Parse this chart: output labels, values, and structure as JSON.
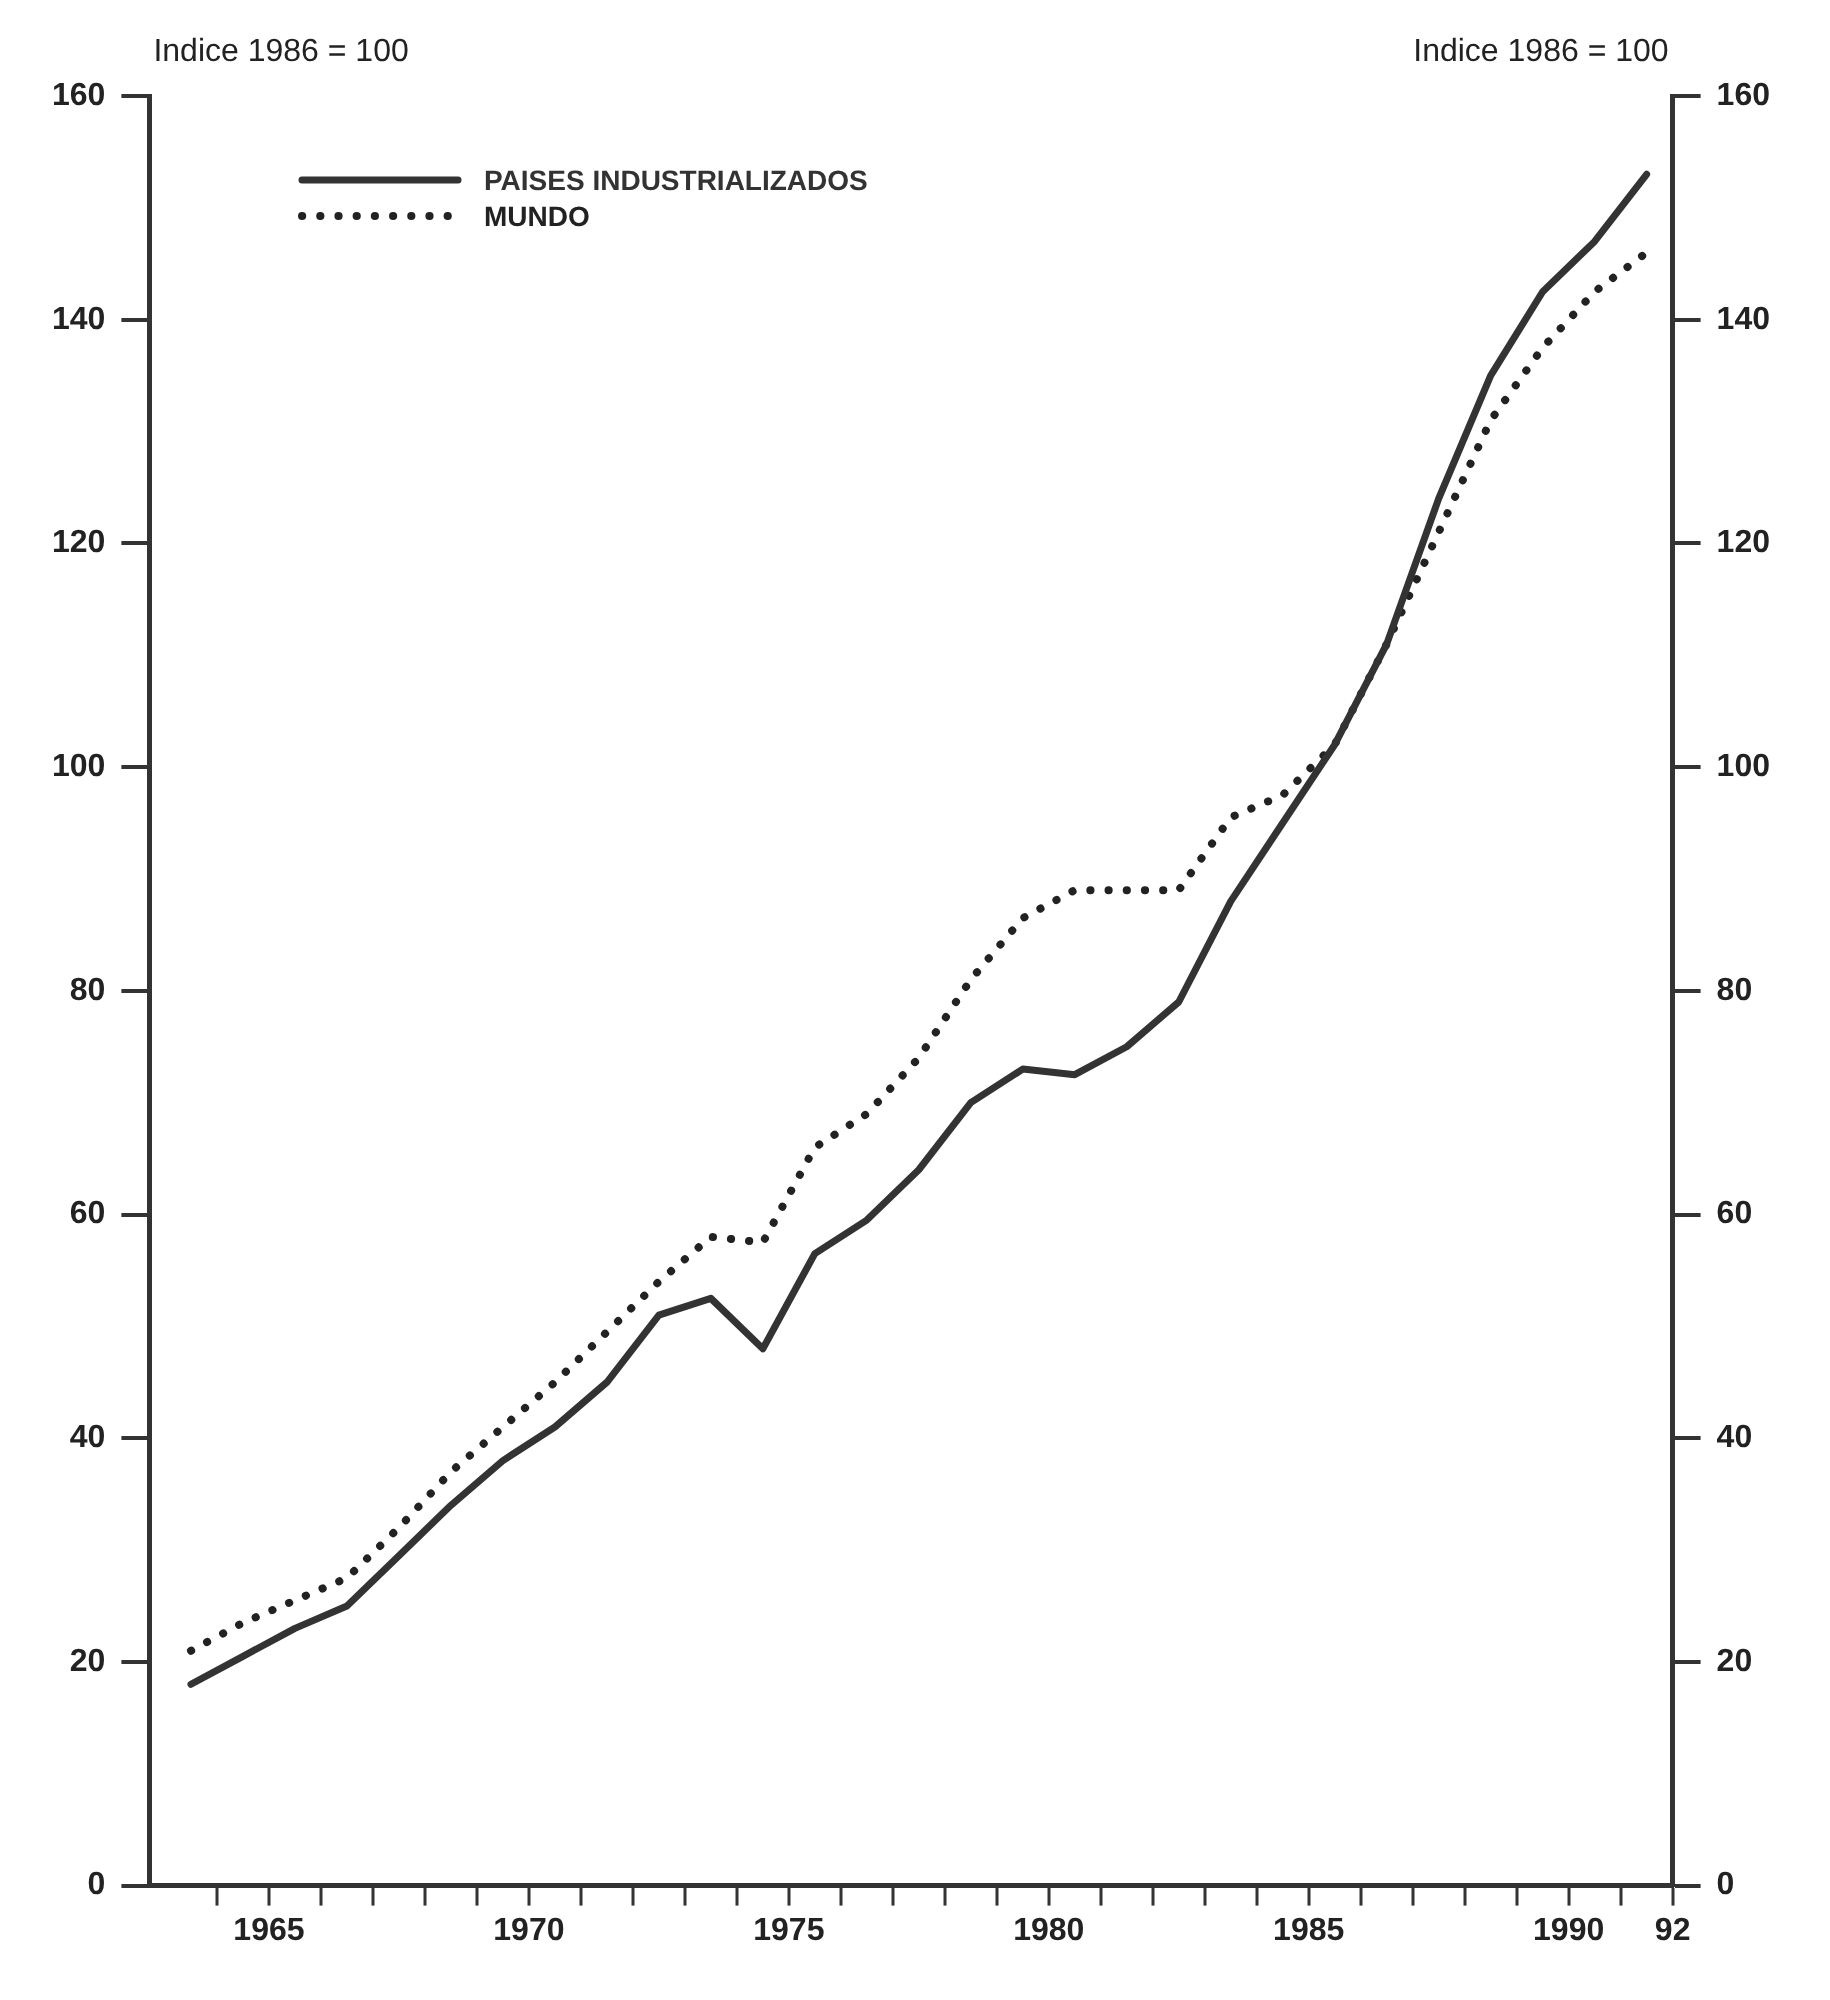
{
  "chart_data": {
    "type": "line",
    "ylabel": "Indice 1986 = 100",
    "y2label": "Indice 1986 = 100",
    "x": [
      1963.5,
      1964.5,
      1965.5,
      1966.5,
      1967.5,
      1968.5,
      1969.5,
      1970.5,
      1971.5,
      1972.5,
      1973.5,
      1974.5,
      1975.5,
      1976.5,
      1977.5,
      1978.5,
      1979.5,
      1980.5,
      1981.5,
      1982.5,
      1983.5,
      1984.5,
      1985.5,
      1986.5,
      1987.5,
      1988.5,
      1989.5,
      1990.5,
      1991.5
    ],
    "series": [
      {
        "name": "PAISES INDUSTRIALIZADOS",
        "color": "#333333",
        "line_style": "solid",
        "values": [
          18,
          20.5,
          23,
          25,
          29.5,
          34,
          38,
          41,
          45,
          51,
          52.5,
          48,
          56.5,
          59.5,
          64,
          70,
          73,
          72.5,
          75,
          79,
          88,
          95,
          102,
          111,
          124,
          135,
          142.5,
          147,
          153
        ]
      },
      {
        "name": "MUNDO",
        "color": "#222222",
        "line_style": "dotted",
        "values": [
          21,
          23.5,
          25.5,
          27.5,
          32,
          37,
          41,
          45,
          49.5,
          54,
          58,
          57.5,
          66,
          69,
          74,
          81,
          86.5,
          89,
          89,
          89,
          95.5,
          97.5,
          102,
          111,
          121,
          131,
          137.5,
          142.5,
          146
        ]
      }
    ],
    "xlim": [
      1962.7,
      1992
    ],
    "xticks": [
      {
        "value": 1964,
        "label": null
      },
      1965,
      {
        "value": 1966,
        "label": null
      },
      {
        "value": 1967,
        "label": null
      },
      {
        "value": 1968,
        "label": null
      },
      {
        "value": 1969,
        "label": null
      },
      1970,
      {
        "value": 1971,
        "label": null
      },
      {
        "value": 1972,
        "label": null
      },
      {
        "value": 1973,
        "label": null
      },
      {
        "value": 1974,
        "label": null
      },
      1975,
      {
        "value": 1976,
        "label": null
      },
      {
        "value": 1977,
        "label": null
      },
      {
        "value": 1978,
        "label": null
      },
      {
        "value": 1979,
        "label": null
      },
      1980,
      {
        "value": 1981,
        "label": null
      },
      {
        "value": 1982,
        "label": null
      },
      {
        "value": 1983,
        "label": null
      },
      {
        "value": 1984,
        "label": null
      },
      1985,
      {
        "value": 1986,
        "label": null
      },
      {
        "value": 1987,
        "label": null
      },
      {
        "value": 1988,
        "label": null
      },
      {
        "value": 1989,
        "label": null
      },
      1990,
      {
        "value": 1991,
        "label": null
      },
      {
        "value": 1992,
        "label": "92"
      }
    ],
    "ylim": [
      0,
      160
    ],
    "yticks": [
      0,
      20,
      40,
      60,
      80,
      100,
      120,
      140,
      160
    ],
    "y2lim": [
      0,
      160
    ],
    "y2ticks": [
      0,
      20,
      40,
      60,
      80,
      100,
      120,
      140,
      160
    ],
    "grid": false,
    "legend": "top left",
    "marker": "none"
  }
}
